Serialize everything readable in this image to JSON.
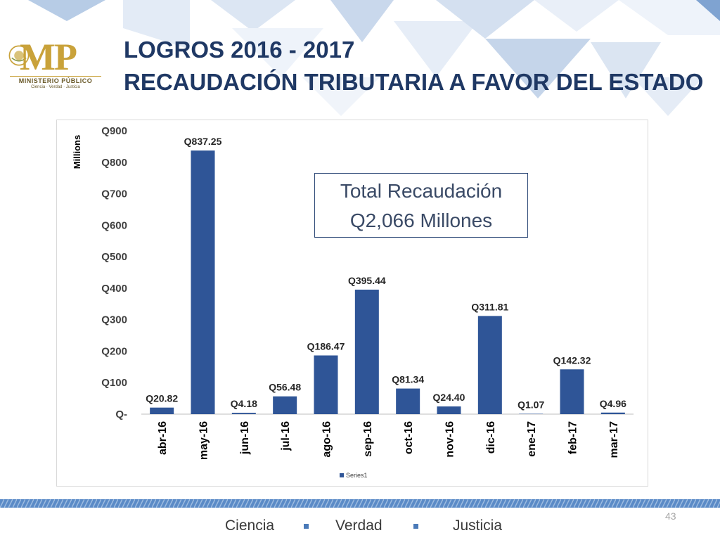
{
  "header": {
    "title_line1": "LOGROS 2016 - 2017",
    "title_line2": "RECAUDACIÓN TRIBUTARIA A FAVOR DEL ESTADO"
  },
  "logo": {
    "mark": "MP",
    "name": "MINISTERIO PÚBLICO",
    "tagline": "Ciencia · Verdad · Justicia"
  },
  "callout": {
    "line1": "Total Recaudación",
    "line2": "Q2,066 Millones"
  },
  "chart_data": {
    "type": "bar",
    "categories": [
      "abr-16",
      "may-16",
      "jun-16",
      "jul-16",
      "ago-16",
      "sep-16",
      "oct-16",
      "nov-16",
      "dic-16",
      "ene-17",
      "feb-17",
      "mar-17"
    ],
    "series": [
      {
        "name": "Series1",
        "values": [
          20.82,
          837.25,
          4.18,
          56.48,
          186.47,
          395.44,
          81.34,
          24.4,
          311.81,
          1.07,
          142.32,
          4.96
        ],
        "labels": [
          "Q20.82",
          "Q837.25",
          "Q4.18",
          "Q56.48",
          "Q186.47",
          "Q395.44",
          "Q81.34",
          "Q24.40",
          "Q311.81",
          "Q1.07",
          "Q142.32",
          "Q4.96"
        ],
        "color": "#2f5597"
      }
    ],
    "ylabel": "Millions",
    "ylim": [
      0,
      900
    ],
    "yticks": [
      0,
      100,
      200,
      300,
      400,
      500,
      600,
      700,
      800,
      900
    ],
    "ytick_labels": [
      "Q-",
      "Q100",
      "Q200",
      "Q300",
      "Q400",
      "Q500",
      "Q600",
      "Q700",
      "Q800",
      "Q900"
    ],
    "legend": {
      "position": "bottom",
      "label": "Series1"
    },
    "grid": false
  },
  "footer": {
    "page_number": "43",
    "motto": [
      "Ciencia",
      "Verdad",
      "Justicia"
    ]
  },
  "colors": {
    "title": "#1f3864",
    "bar": "#2f5597",
    "pattern": "#c5d5ea",
    "logo_gold": "#c9a23a"
  }
}
